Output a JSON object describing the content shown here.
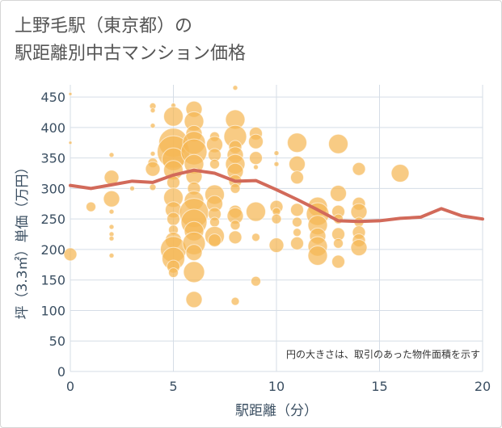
{
  "page": {
    "title_line1": "上野毛駅（東京都）の",
    "title_line2": "駅距離別中古マンション価格"
  },
  "colors": {
    "bubble": "#f5b755",
    "line": "#d26a5a",
    "grid": "#d5dde6",
    "axis_text": "#3b4f62"
  },
  "chart_data": {
    "type": "scatter",
    "xlabel": "駅距離（分）",
    "ylabel": "坪（3.3㎡）単価（万円）",
    "xlim": [
      0,
      20
    ],
    "ylim": [
      0,
      470
    ],
    "xticks": [
      0,
      5,
      10,
      15,
      20
    ],
    "yticks": [
      0,
      50,
      100,
      150,
      200,
      250,
      300,
      350,
      400,
      450
    ],
    "note": "円の大きさは、取引のあった物件面積を示す",
    "trend_line": {
      "x": [
        0,
        1,
        2,
        3,
        4,
        5,
        6,
        7,
        8,
        9,
        10,
        11,
        12,
        13,
        14,
        15,
        16,
        17,
        18,
        19,
        20
      ],
      "y": [
        305,
        300,
        306,
        312,
        310,
        322,
        330,
        325,
        312,
        313,
        298,
        282,
        265,
        247,
        246,
        247,
        251,
        253,
        267,
        255,
        250
      ]
    },
    "bubbles": [
      {
        "x": 0,
        "y": 455,
        "r": 2
      },
      {
        "x": 0,
        "y": 375,
        "r": 2
      },
      {
        "x": 0,
        "y": 192,
        "r": 8
      },
      {
        "x": 1,
        "y": 270,
        "r": 6
      },
      {
        "x": 2,
        "y": 355,
        "r": 3
      },
      {
        "x": 2,
        "y": 318,
        "r": 9
      },
      {
        "x": 2,
        "y": 283,
        "r": 10
      },
      {
        "x": 2,
        "y": 262,
        "r": 3
      },
      {
        "x": 2,
        "y": 237,
        "r": 3
      },
      {
        "x": 2,
        "y": 225,
        "r": 3
      },
      {
        "x": 2,
        "y": 218,
        "r": 3
      },
      {
        "x": 2,
        "y": 190,
        "r": 3
      },
      {
        "x": 3,
        "y": 300,
        "r": 3
      },
      {
        "x": 4,
        "y": 435,
        "r": 4
      },
      {
        "x": 4,
        "y": 428,
        "r": 3
      },
      {
        "x": 4,
        "y": 403,
        "r": 3
      },
      {
        "x": 4,
        "y": 357,
        "r": 3
      },
      {
        "x": 4,
        "y": 342,
        "r": 6
      },
      {
        "x": 4,
        "y": 332,
        "r": 9
      },
      {
        "x": 4,
        "y": 302,
        "r": 4
      },
      {
        "x": 5,
        "y": 436,
        "r": 3
      },
      {
        "x": 5,
        "y": 418,
        "r": 12
      },
      {
        "x": 5,
        "y": 375,
        "r": 18
      },
      {
        "x": 5,
        "y": 360,
        "r": 20
      },
      {
        "x": 5,
        "y": 348,
        "r": 14
      },
      {
        "x": 5,
        "y": 330,
        "r": 12
      },
      {
        "x": 5,
        "y": 310,
        "r": 8
      },
      {
        "x": 5,
        "y": 285,
        "r": 12
      },
      {
        "x": 5,
        "y": 265,
        "r": 10
      },
      {
        "x": 5,
        "y": 250,
        "r": 8
      },
      {
        "x": 5,
        "y": 232,
        "r": 6
      },
      {
        "x": 5,
        "y": 215,
        "r": 10
      },
      {
        "x": 5,
        "y": 200,
        "r": 16
      },
      {
        "x": 5,
        "y": 185,
        "r": 14
      },
      {
        "x": 5,
        "y": 172,
        "r": 8
      },
      {
        "x": 5,
        "y": 162,
        "r": 6
      },
      {
        "x": 6,
        "y": 430,
        "r": 10
      },
      {
        "x": 6,
        "y": 410,
        "r": 12
      },
      {
        "x": 6,
        "y": 390,
        "r": 10
      },
      {
        "x": 6,
        "y": 375,
        "r": 14
      },
      {
        "x": 6,
        "y": 360,
        "r": 16
      },
      {
        "x": 6,
        "y": 340,
        "r": 12
      },
      {
        "x": 6,
        "y": 320,
        "r": 10
      },
      {
        "x": 6,
        "y": 300,
        "r": 8
      },
      {
        "x": 6,
        "y": 280,
        "r": 12
      },
      {
        "x": 6,
        "y": 260,
        "r": 18
      },
      {
        "x": 6,
        "y": 245,
        "r": 16
      },
      {
        "x": 6,
        "y": 230,
        "r": 12
      },
      {
        "x": 6,
        "y": 210,
        "r": 14
      },
      {
        "x": 6,
        "y": 195,
        "r": 10
      },
      {
        "x": 6,
        "y": 163,
        "r": 13
      },
      {
        "x": 6,
        "y": 118,
        "r": 10
      },
      {
        "x": 7,
        "y": 385,
        "r": 6
      },
      {
        "x": 7,
        "y": 372,
        "r": 10
      },
      {
        "x": 7,
        "y": 355,
        "r": 8
      },
      {
        "x": 7,
        "y": 340,
        "r": 6
      },
      {
        "x": 7,
        "y": 290,
        "r": 12
      },
      {
        "x": 7,
        "y": 275,
        "r": 10
      },
      {
        "x": 7,
        "y": 258,
        "r": 8
      },
      {
        "x": 7,
        "y": 245,
        "r": 6
      },
      {
        "x": 7,
        "y": 222,
        "r": 12
      },
      {
        "x": 7,
        "y": 215,
        "r": 8
      },
      {
        "x": 8,
        "y": 465,
        "r": 3
      },
      {
        "x": 8,
        "y": 413,
        "r": 12
      },
      {
        "x": 8,
        "y": 385,
        "r": 14
      },
      {
        "x": 8,
        "y": 368,
        "r": 8
      },
      {
        "x": 8,
        "y": 355,
        "r": 10
      },
      {
        "x": 8,
        "y": 340,
        "r": 12
      },
      {
        "x": 8,
        "y": 328,
        "r": 10
      },
      {
        "x": 8,
        "y": 312,
        "r": 8
      },
      {
        "x": 8,
        "y": 300,
        "r": 6
      },
      {
        "x": 8,
        "y": 262,
        "r": 8
      },
      {
        "x": 8,
        "y": 255,
        "r": 10
      },
      {
        "x": 8,
        "y": 240,
        "r": 6
      },
      {
        "x": 8,
        "y": 220,
        "r": 8
      },
      {
        "x": 8,
        "y": 115,
        "r": 5
      },
      {
        "x": 9,
        "y": 390,
        "r": 8
      },
      {
        "x": 9,
        "y": 377,
        "r": 9
      },
      {
        "x": 9,
        "y": 350,
        "r": 8
      },
      {
        "x": 9,
        "y": 335,
        "r": 3
      },
      {
        "x": 9,
        "y": 262,
        "r": 12
      },
      {
        "x": 9,
        "y": 220,
        "r": 5
      },
      {
        "x": 9,
        "y": 148,
        "r": 6
      },
      {
        "x": 10,
        "y": 358,
        "r": 3
      },
      {
        "x": 10,
        "y": 340,
        "r": 3
      },
      {
        "x": 10,
        "y": 270,
        "r": 8
      },
      {
        "x": 10,
        "y": 262,
        "r": 5
      },
      {
        "x": 10,
        "y": 250,
        "r": 6
      },
      {
        "x": 10,
        "y": 207,
        "r": 9
      },
      {
        "x": 11,
        "y": 375,
        "r": 12
      },
      {
        "x": 11,
        "y": 340,
        "r": 10
      },
      {
        "x": 11,
        "y": 318,
        "r": 8
      },
      {
        "x": 11,
        "y": 265,
        "r": 8
      },
      {
        "x": 11,
        "y": 245,
        "r": 6
      },
      {
        "x": 11,
        "y": 228,
        "r": 5
      },
      {
        "x": 11,
        "y": 210,
        "r": 8
      },
      {
        "x": 12,
        "y": 270,
        "r": 12
      },
      {
        "x": 12,
        "y": 258,
        "r": 14
      },
      {
        "x": 12,
        "y": 240,
        "r": 12
      },
      {
        "x": 12,
        "y": 222,
        "r": 10
      },
      {
        "x": 12,
        "y": 205,
        "r": 12
      },
      {
        "x": 12,
        "y": 190,
        "r": 12
      },
      {
        "x": 13,
        "y": 373,
        "r": 12
      },
      {
        "x": 13,
        "y": 292,
        "r": 10
      },
      {
        "x": 13,
        "y": 262,
        "r": 8
      },
      {
        "x": 13,
        "y": 250,
        "r": 6
      },
      {
        "x": 13,
        "y": 225,
        "r": 8
      },
      {
        "x": 13,
        "y": 210,
        "r": 6
      },
      {
        "x": 13,
        "y": 180,
        "r": 8
      },
      {
        "x": 14,
        "y": 332,
        "r": 8
      },
      {
        "x": 14,
        "y": 275,
        "r": 8
      },
      {
        "x": 14,
        "y": 262,
        "r": 10
      },
      {
        "x": 14,
        "y": 245,
        "r": 6
      },
      {
        "x": 14,
        "y": 228,
        "r": 8
      },
      {
        "x": 14,
        "y": 215,
        "r": 8
      },
      {
        "x": 14,
        "y": 203,
        "r": 10
      },
      {
        "x": 16,
        "y": 325,
        "r": 11
      }
    ]
  }
}
